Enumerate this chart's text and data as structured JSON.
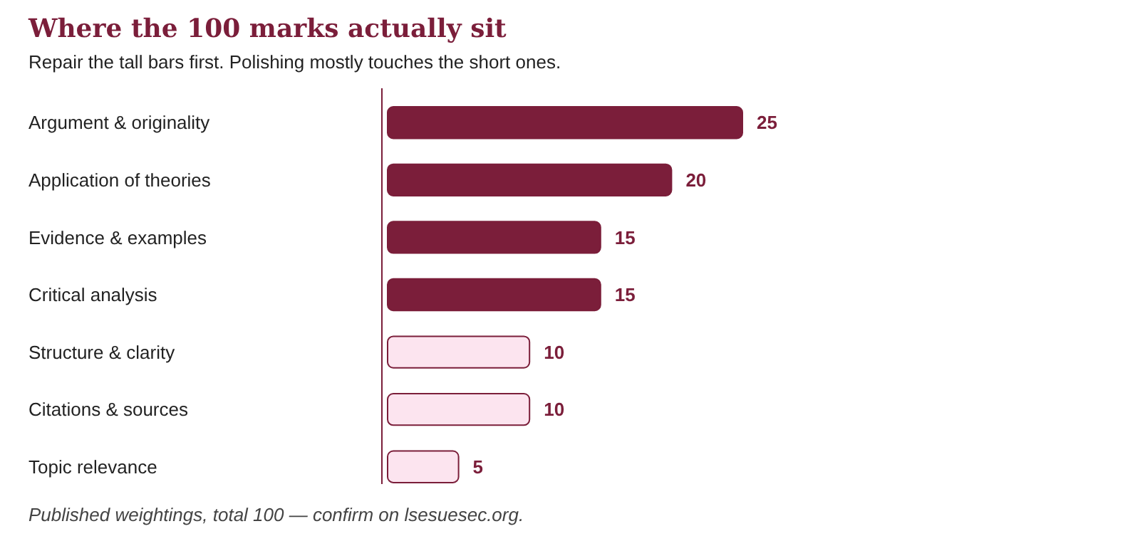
{
  "chart_data": {
    "type": "bar",
    "orientation": "horizontal",
    "title": "Where the 100 marks actually sit",
    "subtitle": "Repair the tall bars first. Polishing mostly touches the short ones.",
    "categories": [
      "Argument & originality",
      "Application of theories",
      "Evidence & examples",
      "Critical analysis",
      "Structure & clarity",
      "Citations & sources",
      "Topic relevance"
    ],
    "values": [
      25,
      20,
      15,
      15,
      10,
      10,
      5
    ],
    "colors": [
      "#7b1e3a",
      "#7b1e3a",
      "#7b1e3a",
      "#7b1e3a",
      "#fce4ef",
      "#fce4ef",
      "#fce4ef"
    ],
    "data_labels": true,
    "annotations": [
      "Published weightings, total 100 — confirm on lsesuesec.org."
    ]
  }
}
